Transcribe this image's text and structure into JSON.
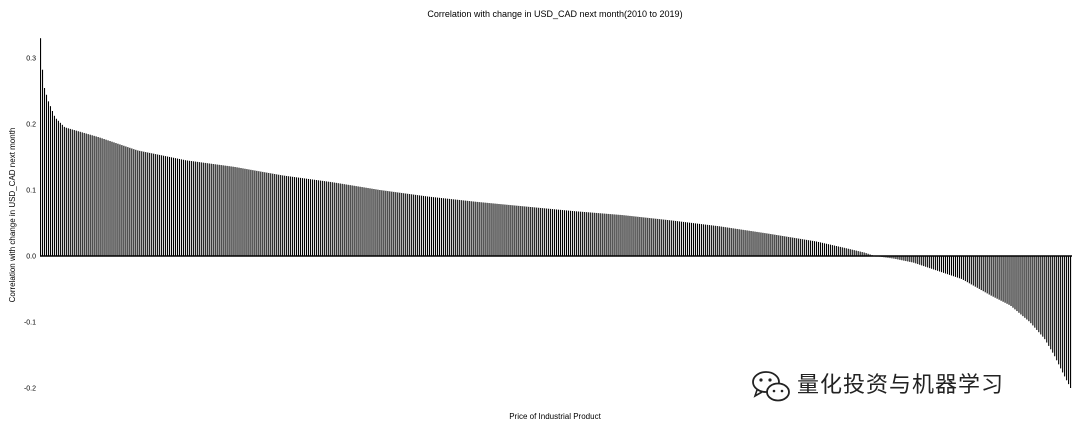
{
  "watermark": {
    "text": "量化投资与机器学习",
    "icon": "wechat-icon"
  },
  "chart_data": {
    "type": "bar",
    "title": "Correlation with change in USD_CAD next month(2010 to 2019)",
    "xlabel": "Price of Industrial Product",
    "ylabel": "Correlation with change in USD_CAD next month",
    "ylim": [
      -0.2,
      0.33
    ],
    "yticks": [
      {
        "value": 0.3,
        "label": "0.3"
      },
      {
        "value": 0.2,
        "label": "0.2"
      },
      {
        "value": 0.1,
        "label": "0.1"
      },
      {
        "value": 0.0,
        "label": "0.0"
      },
      {
        "value": -0.1,
        "label": "-0.1"
      },
      {
        "value": -0.2,
        "label": "-0.2"
      }
    ],
    "grid": false,
    "legend": "none",
    "sorted": "descending",
    "n_bars": 520,
    "value_anchors": [
      [
        0,
        0.33
      ],
      [
        3,
        0.26
      ],
      [
        8,
        0.235
      ],
      [
        15,
        0.21
      ],
      [
        25,
        0.195
      ],
      [
        60,
        0.18
      ],
      [
        100,
        0.16
      ],
      [
        150,
        0.145
      ],
      [
        200,
        0.135
      ],
      [
        250,
        0.122
      ],
      [
        300,
        0.112
      ],
      [
        350,
        0.1
      ],
      [
        400,
        0.09
      ],
      [
        450,
        0.082
      ],
      [
        500,
        0.075
      ],
      [
        550,
        0.068
      ],
      [
        600,
        0.062
      ],
      [
        650,
        0.054
      ],
      [
        700,
        0.045
      ],
      [
        750,
        0.034
      ],
      [
        800,
        0.022
      ],
      [
        830,
        0.012
      ],
      [
        850,
        0.005
      ],
      [
        860,
        0.0
      ],
      [
        880,
        -0.004
      ],
      [
        900,
        -0.01
      ],
      [
        920,
        -0.02
      ],
      [
        950,
        -0.035
      ],
      [
        980,
        -0.06
      ],
      [
        1000,
        -0.075
      ],
      [
        1020,
        -0.1
      ],
      [
        1035,
        -0.125
      ],
      [
        1045,
        -0.15
      ],
      [
        1055,
        -0.18
      ],
      [
        1062,
        -0.2
      ]
    ],
    "anchor_x_units": "bar index scaled to 0-1062"
  }
}
